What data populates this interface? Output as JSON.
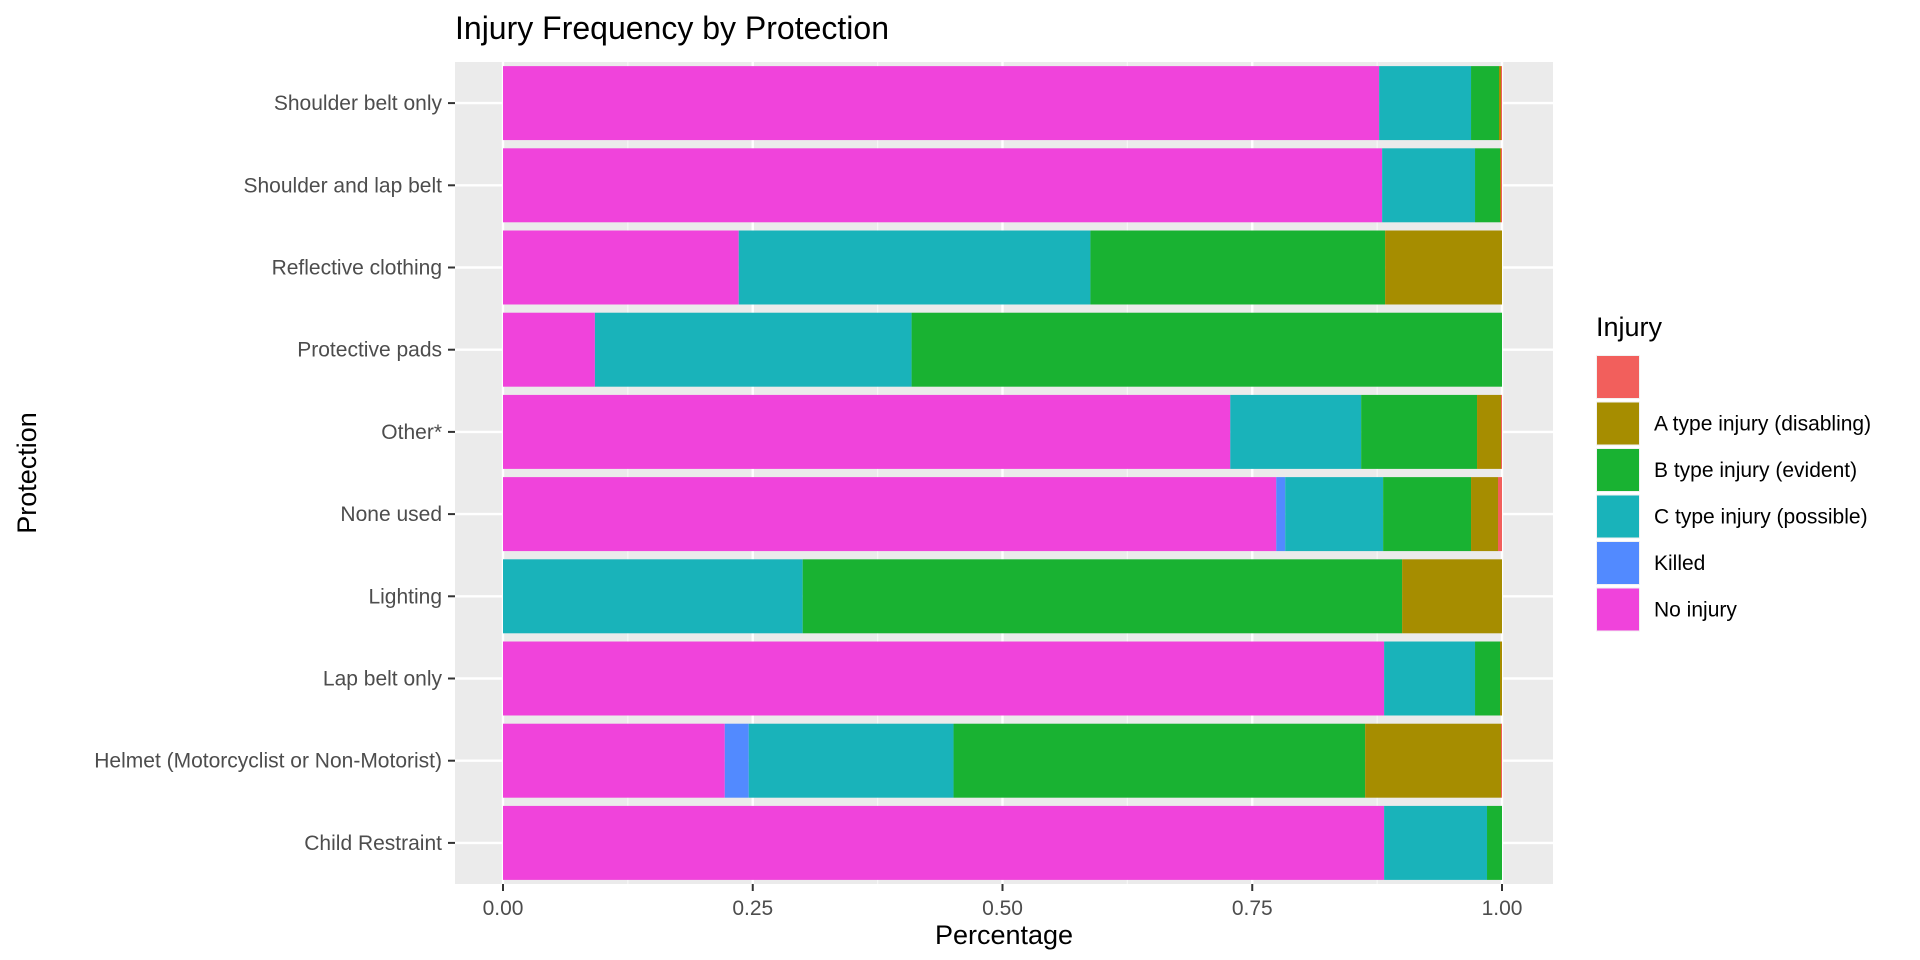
{
  "chart_data": {
    "type": "bar",
    "orientation": "horizontal",
    "stacked": true,
    "title": "Injury Frequency by Protection",
    "xlabel": "Percentage",
    "ylabel": "Protection",
    "xlim": [
      0,
      1
    ],
    "x_ticks": [
      "0.00",
      "0.25",
      "0.50",
      "0.75",
      "1.00"
    ],
    "grid": true,
    "legend_position": "right",
    "legend_title": "Injury",
    "categories": [
      "Shoulder belt only",
      "Shoulder and lap belt",
      "Reflective clothing",
      "Protective pads",
      "Other*",
      "None used",
      "Lighting",
      "Lap belt only",
      "Helmet (Motorcyclist or Non-Motorist)",
      "Child Restraint"
    ],
    "series": [
      {
        "name": "No injury",
        "color": "#F043DB",
        "values": [
          0.877,
          0.88,
          0.236,
          0.092,
          0.728,
          0.774,
          0.0,
          0.882,
          0.222,
          0.882
        ]
      },
      {
        "name": "Killed",
        "color": "#528AFF",
        "values": [
          0.0,
          0.0,
          0.0,
          0.0,
          0.0,
          0.009,
          0.0,
          0.0,
          0.024,
          0.0
        ]
      },
      {
        "name": "C type injury (possible)",
        "color": "#19B3BA",
        "values": [
          0.092,
          0.093,
          0.352,
          0.317,
          0.131,
          0.098,
          0.3,
          0.091,
          0.205,
          0.103
        ]
      },
      {
        "name": "B type injury (evident)",
        "color": "#19B232",
        "values": [
          0.028,
          0.025,
          0.295,
          0.591,
          0.116,
          0.088,
          0.6,
          0.025,
          0.412,
          0.015
        ]
      },
      {
        "name": "A type injury (disabling)",
        "color": "#A68D00",
        "values": [
          0.002,
          0.001,
          0.117,
          0.0,
          0.024,
          0.027,
          0.1,
          0.002,
          0.136,
          0.0
        ]
      },
      {
        "name": "",
        "color": "#F25F5C",
        "values": [
          0.001,
          0.001,
          0.0,
          0.0,
          0.001,
          0.004,
          0.0,
          0.0,
          0.001,
          0.0
        ]
      }
    ],
    "legend_order": [
      "",
      "A type injury (disabling)",
      "B type injury (evident)",
      "C type injury (possible)",
      "Killed",
      "No injury"
    ]
  }
}
